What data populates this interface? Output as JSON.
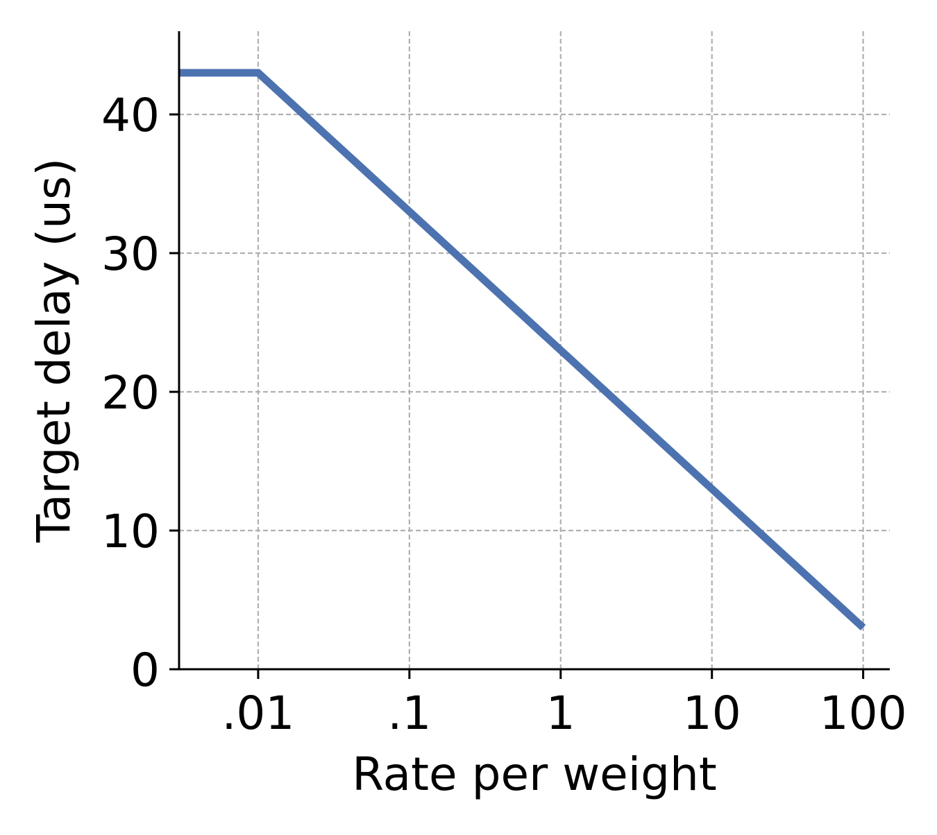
{
  "chart_data": {
    "type": "line",
    "title": "",
    "xlabel": "Rate per weight",
    "ylabel": "Target delay (us)",
    "x_scale": "log",
    "x_ticks": [
      0.01,
      0.1,
      1,
      10,
      100
    ],
    "x_tick_labels": [
      ".01",
      ".1",
      "1",
      "10",
      "100"
    ],
    "y_ticks": [
      0,
      10,
      20,
      30,
      40
    ],
    "y_tick_labels": [
      "0",
      "10",
      "20",
      "30",
      "40"
    ],
    "xlim": [
      0.003,
      150
    ],
    "ylim": [
      0,
      46
    ],
    "grid": true,
    "series": [
      {
        "x": [
          0.003,
          0.01,
          0.1,
          1,
          10,
          100
        ],
        "y": [
          43,
          43,
          33,
          23,
          13,
          3
        ]
      }
    ]
  },
  "colors": {
    "line": "#4c72b0",
    "grid": "#b0b0b0",
    "axis": "#000000"
  }
}
